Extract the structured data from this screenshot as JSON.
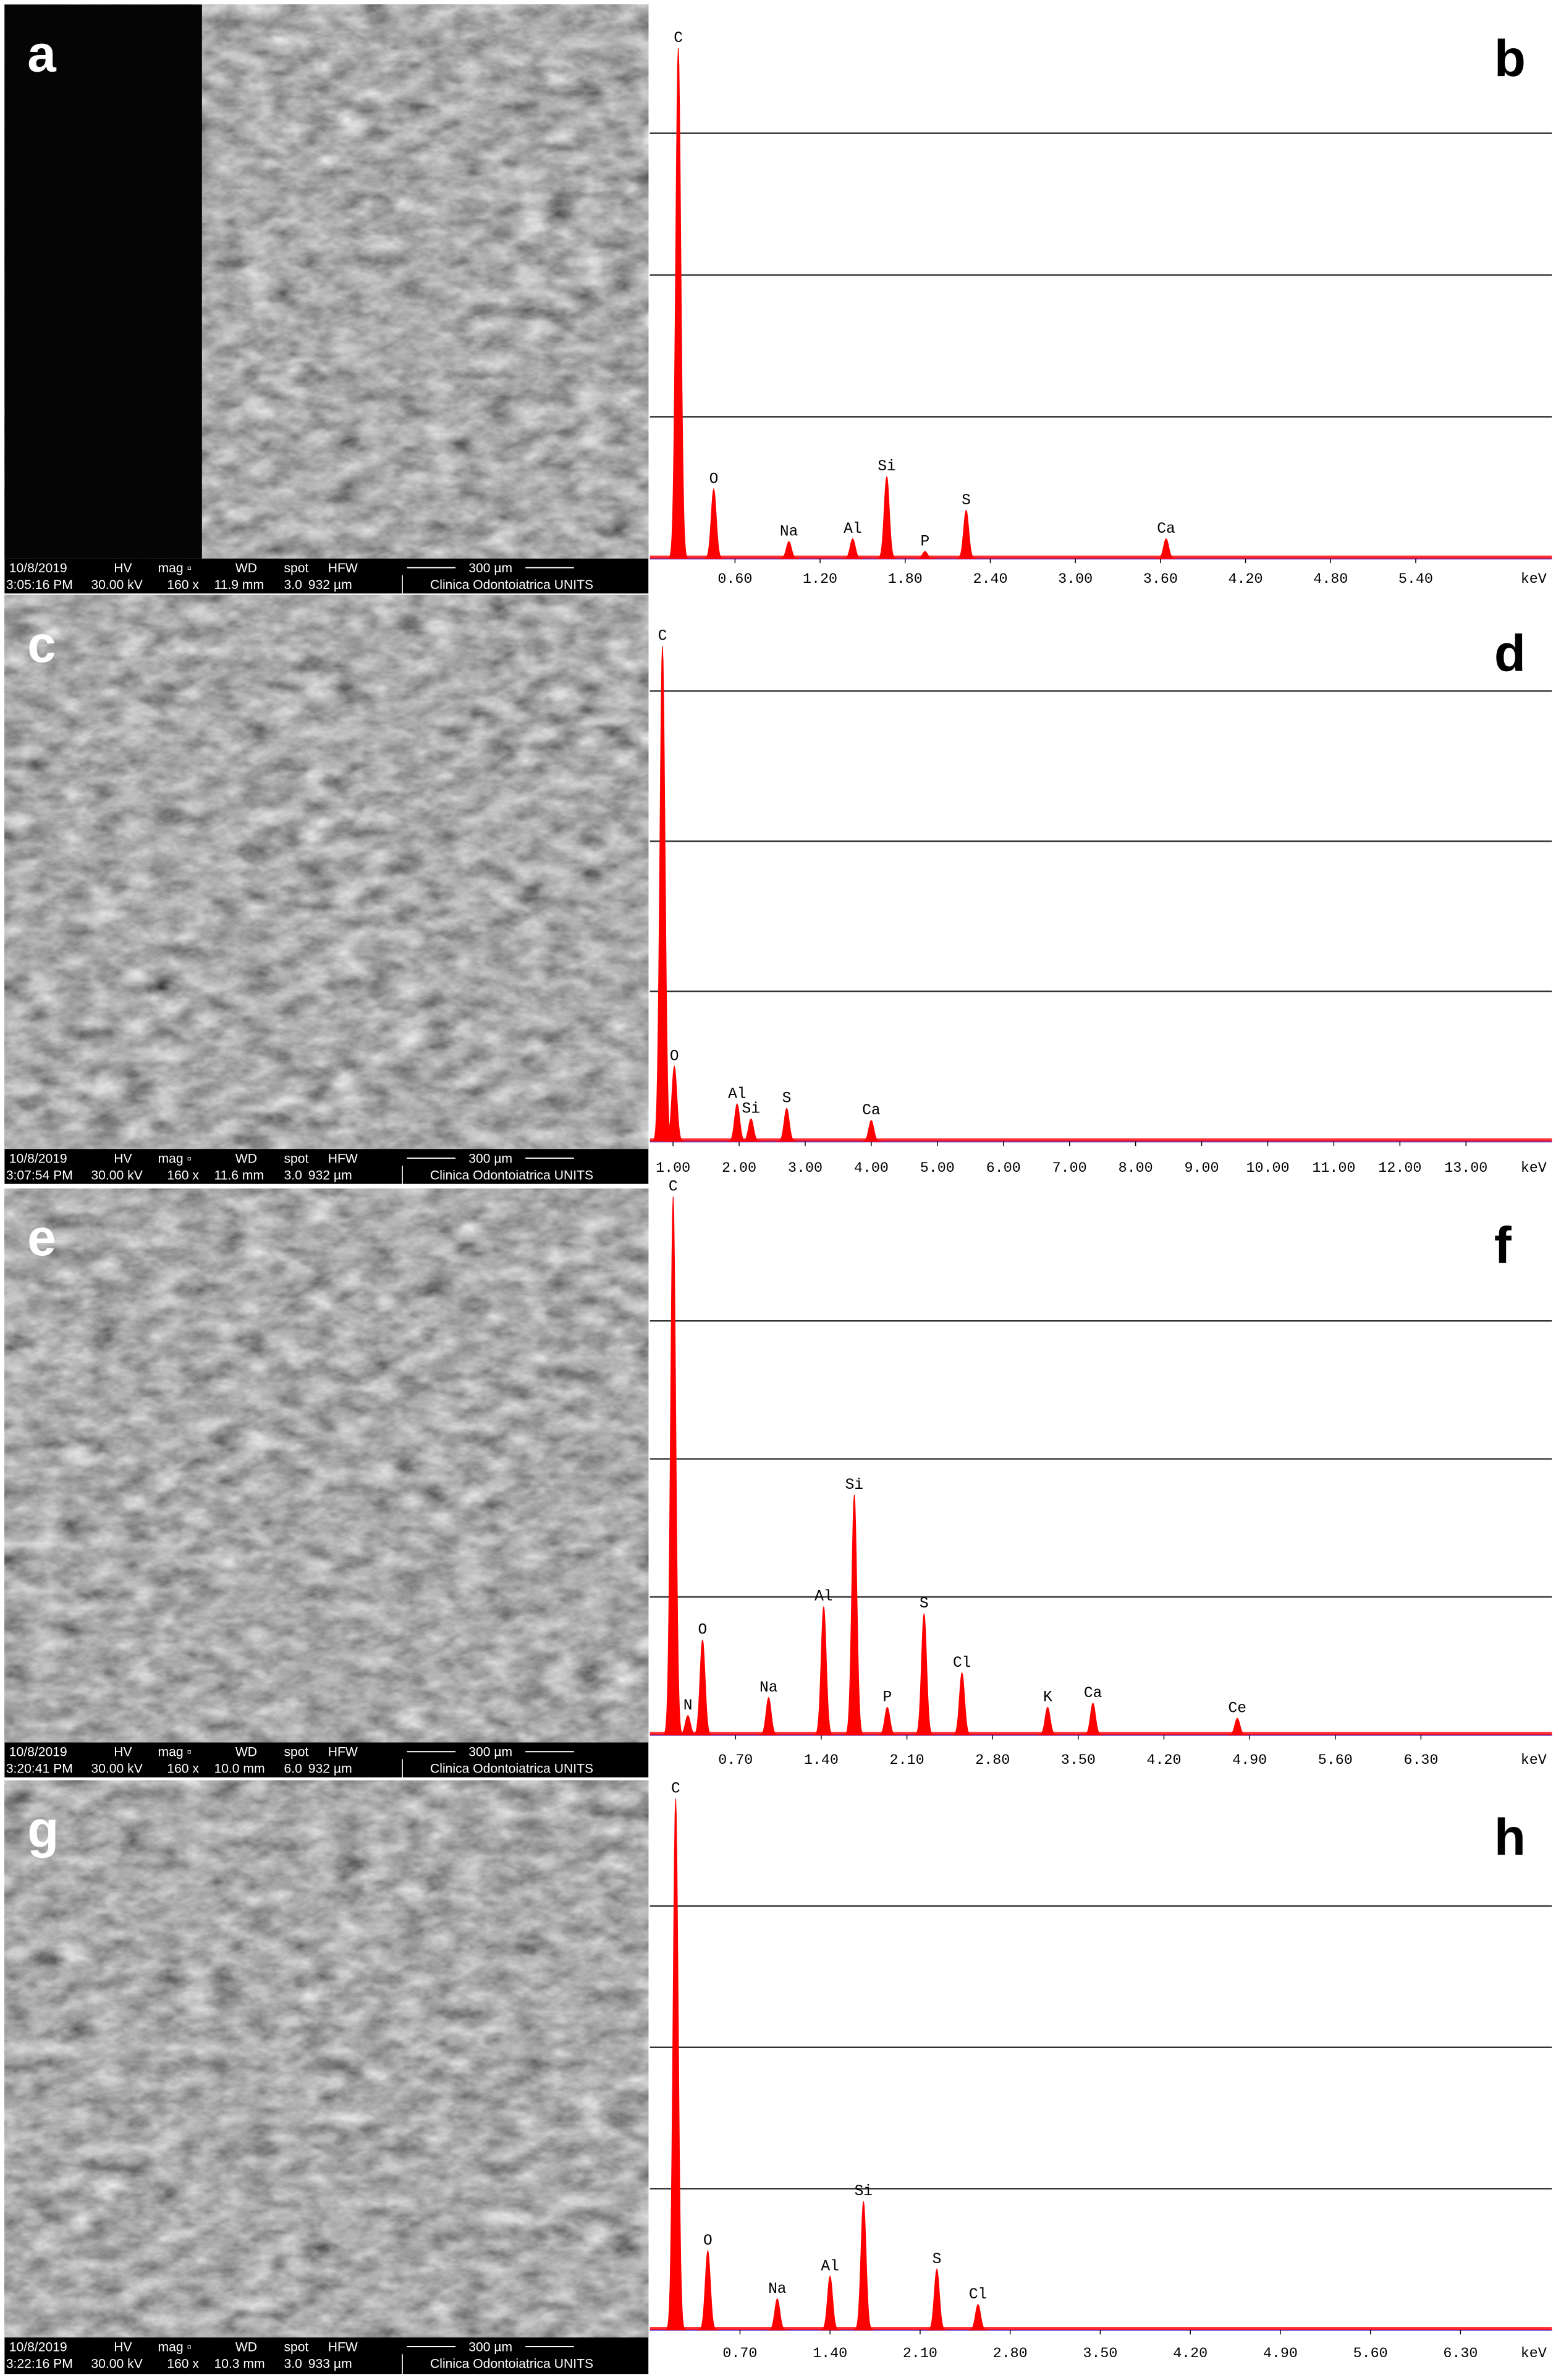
{
  "images": [
    {
      "panel": "a",
      "info": [
        "10/8/2019",
        "HV",
        "mag ▫",
        "WD",
        "spot",
        "HFW",
        "300 µm",
        "3:05:16 PM",
        "30.00 kV",
        "160 x",
        "11.9 mm",
        "3.0",
        "932 µm",
        "Clinica Odontoiatrica UNITS"
      ]
    },
    {
      "panel": "c",
      "info": [
        "10/8/2019",
        "HV",
        "mag ▫",
        "WD",
        "spot",
        "HFW",
        "300 µm",
        "3:07:54 PM",
        "30.00 kV",
        "160 x",
        "11.6 mm",
        "3.0",
        "932 µm",
        "Clinica Odontoiatrica UNITS"
      ]
    },
    {
      "panel": "e",
      "info": [
        "10/8/2019",
        "HV",
        "mag ▫",
        "WD",
        "spot",
        "HFW",
        "300 µm",
        "3:20:41 PM",
        "30.00 kV",
        "160 x",
        "10.0 mm",
        "6.0",
        "932 µm",
        "Clinica Odontoiatrica UNITS"
      ]
    },
    {
      "panel": "g",
      "info": [
        "10/8/2019",
        "HV",
        "mag ▫",
        "WD",
        "spot",
        "HFW",
        "300 µm",
        "3:22:16 PM",
        "30.00 kV",
        "160 x",
        "10.3 mm",
        "3.0",
        "933 µm",
        "Clinica Odontoiatrica UNITS"
      ]
    }
  ],
  "chart_data": [
    {
      "type": "spectrum",
      "panel": "b",
      "x_label": "keV",
      "color": "#ff0000",
      "grid": true,
      "xlim": [
        0,
        6.36
      ],
      "ylim": [
        0,
        3.94
      ],
      "yticks": [
        1,
        2,
        3
      ],
      "xticks": [
        {
          "value": 0.6,
          "label": "0.60"
        },
        {
          "value": 1.2,
          "label": "1.20"
        },
        {
          "value": 1.8,
          "label": "1.80"
        },
        {
          "value": 2.4,
          "label": "2.40"
        },
        {
          "value": 3.0,
          "label": "3.00"
        },
        {
          "value": 3.6,
          "label": "3.60"
        },
        {
          "value": 4.2,
          "label": "4.20"
        },
        {
          "value": 4.8,
          "label": "4.80"
        },
        {
          "value": 5.4,
          "label": "5.40"
        }
      ],
      "peak_labels": [
        "C",
        "O",
        "Na",
        "Al",
        "Si",
        "P",
        "S",
        "Ca"
      ],
      "x": [
        0.2,
        0.45,
        0.98,
        1.43,
        1.67,
        1.94,
        2.23,
        3.64
      ],
      "values": [
        3.6,
        0.49,
        0.12,
        0.14,
        0.58,
        0.05,
        0.34,
        0.14
      ]
    },
    {
      "type": "spectrum",
      "panel": "d",
      "x_label": "keV",
      "color": "#ff0000",
      "grid": true,
      "xlim": [
        0.65,
        14.3
      ],
      "ylim": [
        0,
        3.64
      ],
      "yticks": [
        1,
        2,
        3
      ],
      "xticks": [
        {
          "value": 1,
          "label": "1.00"
        },
        {
          "value": 2,
          "label": "2.00"
        },
        {
          "value": 3,
          "label": "3.00"
        },
        {
          "value": 4,
          "label": "4.00"
        },
        {
          "value": 5,
          "label": "5.00"
        },
        {
          "value": 6,
          "label": "6.00"
        },
        {
          "value": 7,
          "label": "7.00"
        },
        {
          "value": 8,
          "label": "8.00"
        },
        {
          "value": 9,
          "label": "9.00"
        },
        {
          "value": 10,
          "label": "10.00"
        },
        {
          "value": 11,
          "label": "11.00"
        },
        {
          "value": 12,
          "label": "12.00"
        },
        {
          "value": 13,
          "label": "13.00"
        }
      ],
      "peak_labels": [
        "C",
        "O",
        "Al",
        "Si",
        "S",
        "Ca"
      ],
      "x": [
        0.84,
        1.02,
        1.97,
        2.18,
        2.72,
        4.0
      ],
      "values": [
        3.3,
        0.5,
        0.25,
        0.15,
        0.22,
        0.14
      ]
    },
    {
      "type": "spectrum",
      "panel": "f",
      "x_label": "keV",
      "color": "#ff0000",
      "grid": true,
      "xlim": [
        0,
        7.37
      ],
      "ylim": [
        0,
        3.97
      ],
      "yticks": [
        1,
        2,
        3
      ],
      "xticks": [
        {
          "value": 0.7,
          "label": "0.70"
        },
        {
          "value": 1.4,
          "label": "1.40"
        },
        {
          "value": 2.1,
          "label": "2.10"
        },
        {
          "value": 2.8,
          "label": "2.80"
        },
        {
          "value": 3.5,
          "label": "3.50"
        },
        {
          "value": 4.2,
          "label": "4.20"
        },
        {
          "value": 4.9,
          "label": "4.90"
        },
        {
          "value": 5.6,
          "label": "5.60"
        },
        {
          "value": 6.3,
          "label": "6.30"
        }
      ],
      "peak_labels": [
        "C",
        "N",
        "O",
        "Na",
        "Al",
        "Si",
        "P",
        "S",
        "Cl",
        "K",
        "Ca",
        "Ce"
      ],
      "x": [
        0.19,
        0.31,
        0.43,
        0.97,
        1.42,
        1.67,
        1.94,
        2.24,
        2.55,
        3.25,
        3.62,
        4.8
      ],
      "values": [
        3.9,
        0.14,
        0.69,
        0.27,
        0.93,
        1.74,
        0.2,
        0.88,
        0.45,
        0.2,
        0.23,
        0.12
      ]
    },
    {
      "type": "spectrum",
      "panel": "h",
      "x_label": "keV",
      "color": "#ff0000",
      "grid": true,
      "xlim": [
        0,
        7.01
      ],
      "ylim": [
        0,
        3.9
      ],
      "yticks": [
        1,
        2,
        3
      ],
      "xticks": [
        {
          "value": 0.7,
          "label": "0.70"
        },
        {
          "value": 1.4,
          "label": "1.40"
        },
        {
          "value": 2.1,
          "label": "2.10"
        },
        {
          "value": 2.8,
          "label": "2.80"
        },
        {
          "value": 3.5,
          "label": "3.50"
        },
        {
          "value": 4.2,
          "label": "4.20"
        },
        {
          "value": 4.9,
          "label": "4.90"
        },
        {
          "value": 5.6,
          "label": "5.60"
        },
        {
          "value": 6.3,
          "label": "6.30"
        }
      ],
      "peak_labels": [
        "C",
        "O",
        "Na",
        "Al",
        "Si",
        "S",
        "Cl"
      ],
      "x": [
        0.2,
        0.45,
        0.99,
        1.4,
        1.66,
        2.23,
        2.55
      ],
      "values": [
        3.76,
        0.56,
        0.22,
        0.38,
        0.91,
        0.43,
        0.18
      ]
    }
  ]
}
